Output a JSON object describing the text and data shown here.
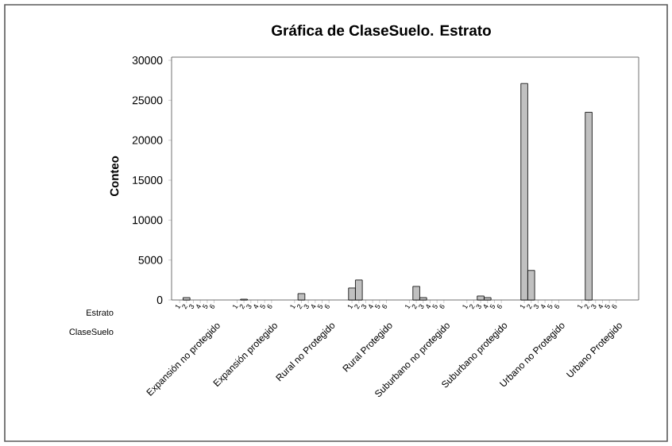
{
  "chart_data": {
    "type": "bar",
    "title": "Gráfica de ClaseSuelo. Estrato",
    "ylabel": "Conteo",
    "categories": [
      "Expansión no protegido",
      "Expansión protegido",
      "Rural no Protegido",
      "Rural Protegido",
      "Suburbano no protegido",
      "Suburbano protegido",
      "Urbano no Protegido",
      "Urbano Protegido"
    ],
    "series": [
      {
        "name": "1",
        "color": "#c0c0c0",
        "values": [
          null,
          null,
          null,
          1500,
          null,
          null,
          27100,
          null
        ]
      },
      {
        "name": "2",
        "color": "#c0c0c0",
        "values": [
          300,
          100,
          800,
          2500,
          1700,
          null,
          3700,
          23500
        ]
      },
      {
        "name": "3",
        "color": "#c0c0c0",
        "values": [
          null,
          null,
          null,
          null,
          300,
          500,
          null,
          null
        ]
      },
      {
        "name": "4",
        "color": "#c0c0c0",
        "values": [
          null,
          null,
          null,
          null,
          null,
          300,
          null,
          null
        ]
      },
      {
        "name": "5",
        "values": [
          null,
          null,
          null,
          null,
          null,
          null,
          null,
          null
        ]
      },
      {
        "name": "6",
        "values": [
          null,
          null,
          null,
          null,
          null,
          null,
          null,
          null
        ]
      }
    ],
    "ylim": [
      0,
      30400
    ],
    "yticks": [
      0,
      5000,
      10000,
      15000,
      20000,
      25000,
      30000
    ],
    "annotations": [
      "Estrato",
      "ClaseSuelo"
    ]
  }
}
